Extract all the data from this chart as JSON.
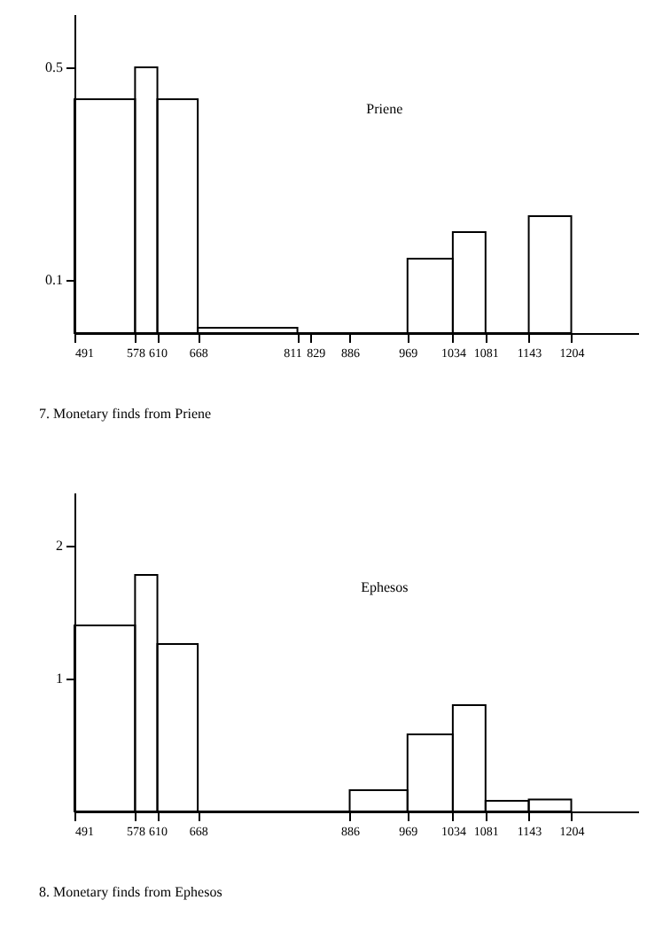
{
  "chart_data": [
    {
      "type": "histogram",
      "title": "Priene",
      "bins": [
        491,
        578,
        610,
        668,
        811,
        969,
        1034,
        1081,
        1143,
        1204
      ],
      "values": [
        0.44,
        0.5,
        0.44,
        0.01,
        0,
        0.14,
        0.19,
        0,
        0.22
      ],
      "color": "#000000",
      "xlim": [
        491,
        1300
      ],
      "xticks": [
        491,
        578,
        610,
        668,
        811,
        829,
        886,
        969,
        1034,
        1081,
        1143,
        1204
      ],
      "ylim": [
        0,
        0.6
      ],
      "yticks": [
        0.1,
        0.5
      ],
      "grid": false,
      "annotations": [
        "7.  Monetary finds from Priene"
      ]
    },
    {
      "type": "histogram",
      "title": "Ephesos",
      "bins": [
        491,
        578,
        610,
        668,
        886,
        969,
        1034,
        1081,
        1143,
        1204
      ],
      "values": [
        1.4,
        1.78,
        1.26,
        0,
        0.16,
        0.58,
        0.8,
        0.08,
        0.09
      ],
      "color": "#000000",
      "xlim": [
        491,
        1300
      ],
      "xticks": [
        491,
        578,
        610,
        668,
        886,
        969,
        1034,
        1081,
        1143,
        1204
      ],
      "ylim": [
        0,
        2.4
      ],
      "yticks": [
        1,
        2
      ],
      "grid": false,
      "annotations": [
        "8.  Monetary finds from Ephesos"
      ]
    }
  ]
}
